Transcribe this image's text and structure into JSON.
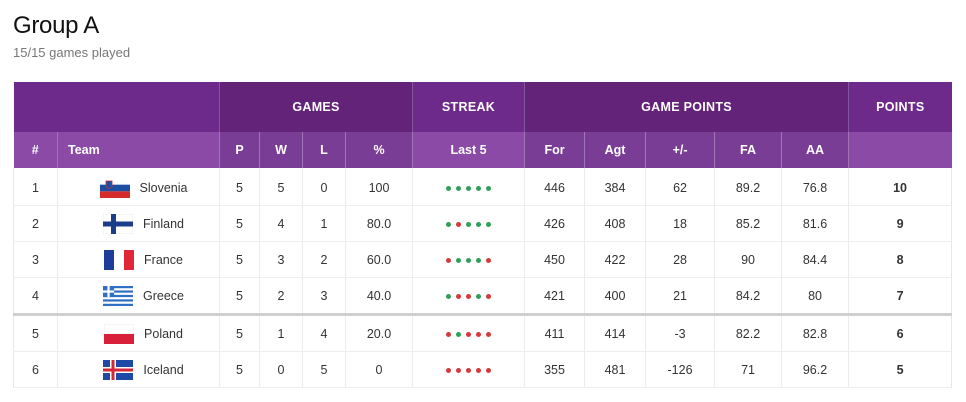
{
  "header": {
    "title": "Group A",
    "subtitle": "15/15 games played"
  },
  "group_headers": {
    "games": "GAMES",
    "streak": "STREAK",
    "game_points": "GAME POINTS",
    "points": "POINTS"
  },
  "columns": [
    "#",
    "Team",
    "P",
    "W",
    "L",
    "%",
    "Last 5",
    "For",
    "Agt",
    "+/-",
    "FA",
    "AA"
  ],
  "colors": {
    "header_dark": "#6e2a8a",
    "header_light": "#8a4aa6",
    "win": "#2ea05a",
    "loss": "#d43a3a"
  },
  "rows": [
    {
      "rank": "1",
      "team": "Slovenia",
      "flag": "slovenia-flag",
      "p": "5",
      "w": "5",
      "l": "0",
      "pct": "100",
      "streak": [
        "W",
        "W",
        "W",
        "W",
        "W"
      ],
      "for": "446",
      "agt": "384",
      "diff": "62",
      "fa": "89.2",
      "aa": "76.8",
      "points": "10"
    },
    {
      "rank": "2",
      "team": "Finland",
      "flag": "finland-flag",
      "p": "5",
      "w": "4",
      "l": "1",
      "pct": "80.0",
      "streak": [
        "W",
        "L",
        "W",
        "W",
        "W"
      ],
      "for": "426",
      "agt": "408",
      "diff": "18",
      "fa": "85.2",
      "aa": "81.6",
      "points": "9"
    },
    {
      "rank": "3",
      "team": "France",
      "flag": "france-flag",
      "p": "5",
      "w": "3",
      "l": "2",
      "pct": "60.0",
      "streak": [
        "L",
        "W",
        "W",
        "W",
        "L"
      ],
      "for": "450",
      "agt": "422",
      "diff": "28",
      "fa": "90",
      "aa": "84.4",
      "points": "8"
    },
    {
      "rank": "4",
      "team": "Greece",
      "flag": "greece-flag",
      "p": "5",
      "w": "2",
      "l": "3",
      "pct": "40.0",
      "streak": [
        "W",
        "L",
        "L",
        "W",
        "L"
      ],
      "for": "421",
      "agt": "400",
      "diff": "21",
      "fa": "84.2",
      "aa": "80",
      "points": "7"
    },
    {
      "rank": "5",
      "team": "Poland",
      "flag": "poland-flag",
      "p": "5",
      "w": "1",
      "l": "4",
      "pct": "20.0",
      "streak": [
        "L",
        "W",
        "L",
        "L",
        "L"
      ],
      "for": "411",
      "agt": "414",
      "diff": "-3",
      "fa": "82.2",
      "aa": "82.8",
      "points": "6"
    },
    {
      "rank": "6",
      "team": "Iceland",
      "flag": "iceland-flag",
      "p": "5",
      "w": "0",
      "l": "5",
      "pct": "0",
      "streak": [
        "L",
        "L",
        "L",
        "L",
        "L"
      ],
      "for": "355",
      "agt": "481",
      "diff": "-126",
      "fa": "71",
      "aa": "96.2",
      "points": "5"
    }
  ]
}
